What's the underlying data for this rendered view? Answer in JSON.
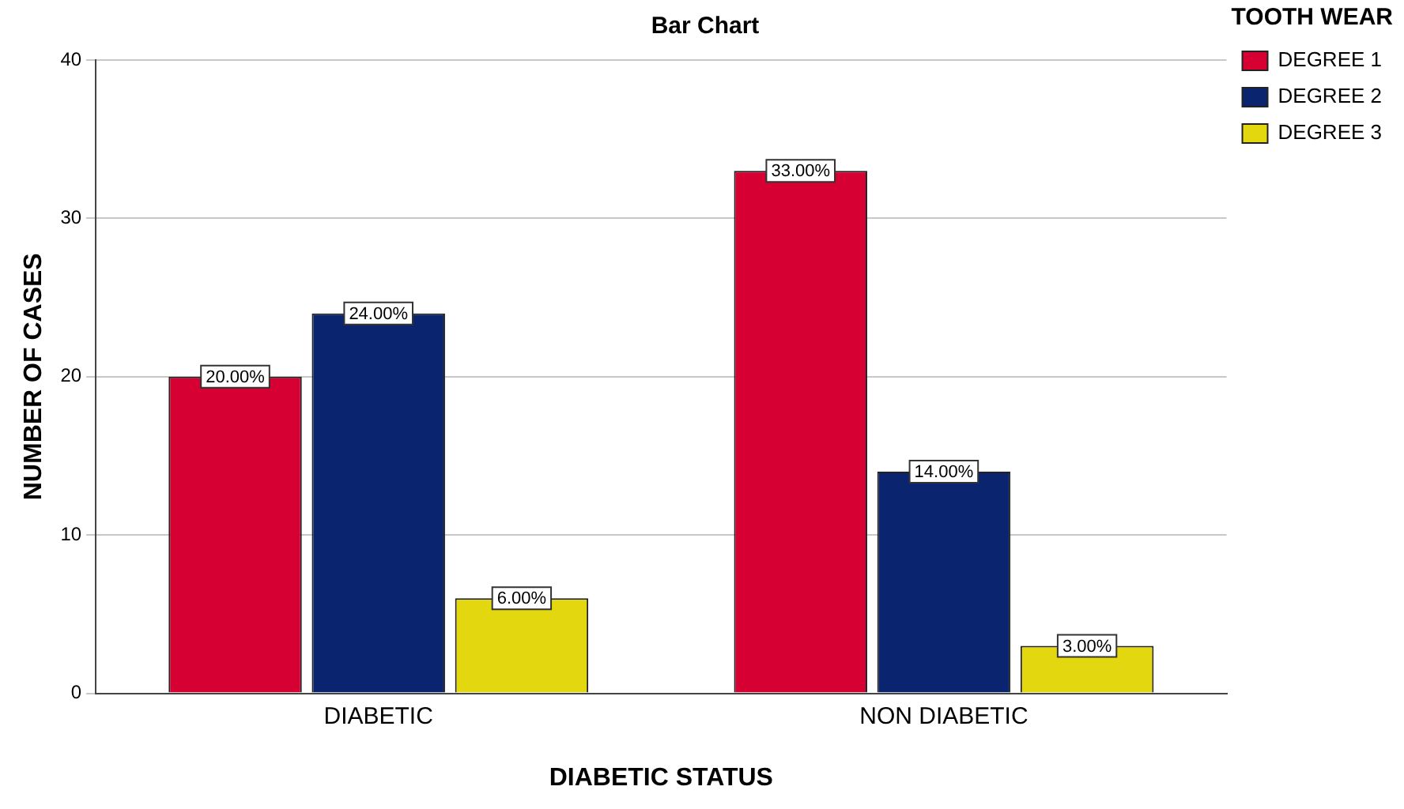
{
  "chart_data": {
    "type": "bar",
    "title": "Bar Chart",
    "xlabel": "DIABETIC STATUS",
    "ylabel": "NUMBER OF CASES",
    "legend_title": "TOOTH WEAR",
    "categories": [
      "DIABETIC",
      "NON DIABETIC"
    ],
    "series": [
      {
        "name": "DEGREE 1",
        "color": "#d70033",
        "values": [
          20,
          33
        ],
        "value_labels": [
          "20.00%",
          "33.00%"
        ]
      },
      {
        "name": "DEGREE 2",
        "color": "#0b2470",
        "values": [
          24,
          14
        ],
        "value_labels": [
          "24.00%",
          "14.00%"
        ]
      },
      {
        "name": "DEGREE 3",
        "color": "#e3d80f",
        "values": [
          6,
          3
        ],
        "value_labels": [
          "6.00%",
          "3.00%"
        ]
      }
    ],
    "ylim": [
      0,
      40
    ],
    "yticks": [
      0,
      10,
      20,
      30,
      40
    ],
    "grid": "y",
    "legend": "top right"
  }
}
